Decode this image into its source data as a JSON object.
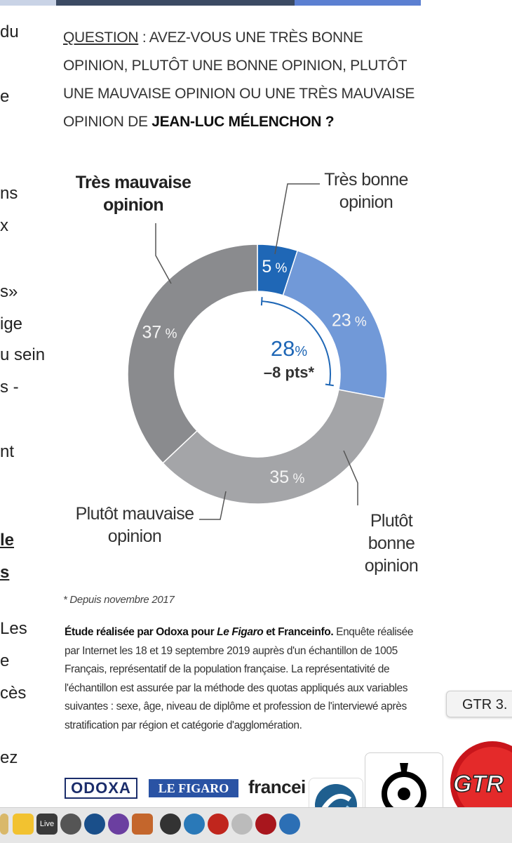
{
  "left_fragments": [
    "du",
    "e",
    "ns",
    "x",
    "s»",
    "ige",
    "u sein",
    "s -",
    "nt",
    "le",
    "s",
    "Les",
    "e",
    "cès",
    "ez"
  ],
  "question": {
    "label": "QUESTION",
    "text": " : AVEZ-VOUS UNE TRÈS BONNE OPINION, PLUTÔT UNE BONNE OPINION, PLUTÔT UNE MAUVAISE OPINION OU UNE TRÈS MAUVAISE OPINION DE ",
    "name": "JEAN-LUC MÉLENCHON ?"
  },
  "chart_data": {
    "type": "pie",
    "categories": [
      "Très bonne opinion",
      "Plutôt bonne opinion",
      "Plutôt mauvaise opinion",
      "Très mauvaise opinion"
    ],
    "values": [
      5,
      23,
      35,
      37
    ],
    "value_labels": [
      "5 %",
      "23 %",
      "35 %",
      "37 %"
    ],
    "colors": [
      "#1f67b6",
      "#7199d8",
      "#a4a5a8",
      "#8a8b8e"
    ],
    "center_value": "28",
    "center_unit": "%",
    "center_change": "–8 pts*",
    "label_lines": [
      [
        "Très bonne",
        "opinion"
      ],
      [
        "Plutôt",
        "bonne",
        "opinion"
      ],
      [
        "Plutôt mauvaise",
        "opinion"
      ],
      [
        "Très mauvaise",
        "opinion"
      ]
    ]
  },
  "footnote": "* Depuis novembre 2017",
  "methodology": {
    "bold_a": "Étude réalisée par Odoxa pour ",
    "italic_a": "Le Figaro",
    "bold_b": " et Franceinfo.",
    "text": " Enquête réalisée par Internet les 18 et 19 septembre 2019 auprès d'un échantillon de 1005 Français, représentatif de la population française. La représentativité de l'échantillon est assurée par la méthode des quotas appliqués aux variables suivantes : sexe, âge, niveau de diplôme et profession de l'interviewé après stratification par région et catégorie d'agglomération."
  },
  "logos": {
    "odoxa": "ODOXA",
    "figaro": "LE FIGARO",
    "france": "francei"
  },
  "dock": {
    "live_label": "Live",
    "tooltip": "GTR 3.",
    "gtr_label": "GTR"
  }
}
